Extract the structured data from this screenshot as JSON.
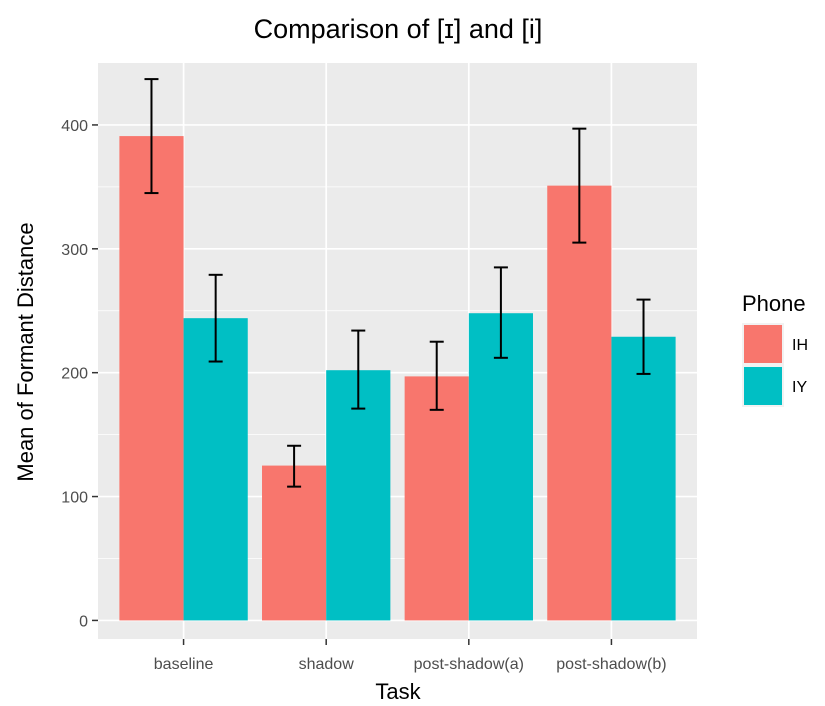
{
  "chart_data": {
    "type": "bar",
    "title": "Comparison of [ɪ] and [i]",
    "xlabel": "Task",
    "ylabel": "Mean of Formant Distance",
    "categories": [
      "baseline",
      "shadow",
      "post-shadow(a)",
      "post-shadow(b)"
    ],
    "series": [
      {
        "name": "IH",
        "color": "#F8766D",
        "values": [
          391,
          125,
          197,
          351
        ],
        "error_low": [
          345,
          108,
          170,
          305
        ],
        "error_high": [
          437,
          141,
          225,
          397
        ]
      },
      {
        "name": "IY",
        "color": "#00BFC4",
        "values": [
          244,
          202,
          248,
          229
        ],
        "error_low": [
          209,
          171,
          212,
          199
        ],
        "error_high": [
          279,
          234,
          285,
          259
        ]
      }
    ],
    "ylim": [
      -15,
      450
    ],
    "yticks": [
      0,
      100,
      200,
      300,
      400
    ],
    "legend": {
      "title": "Phone",
      "position": "right"
    },
    "grid": true,
    "panel_background": "#EBEBEB"
  }
}
